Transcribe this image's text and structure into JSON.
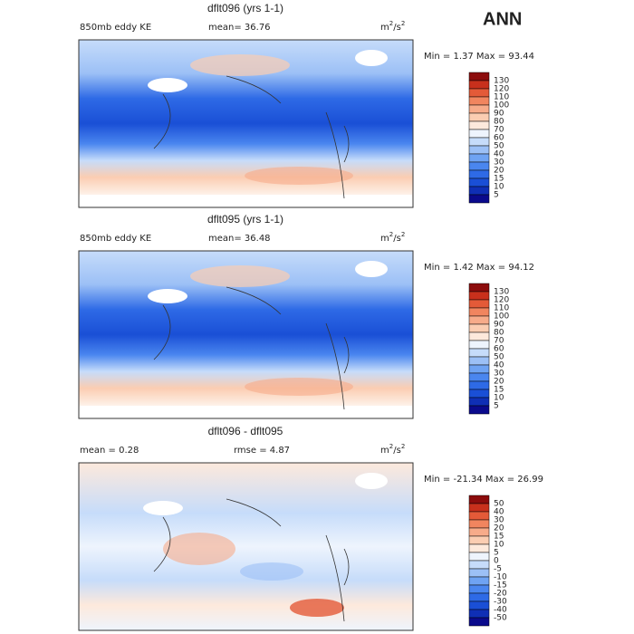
{
  "header": {
    "title": "ANN"
  },
  "palette": [
    "#0a0a8c",
    "#0f2fb5",
    "#1a4fd6",
    "#2e6ae6",
    "#4a86ef",
    "#6fa3f3",
    "#9cc0f6",
    "#c6dcfa",
    "#eef4fd",
    "#fde9dc",
    "#fbcdb2",
    "#f7ab8a",
    "#f1855f",
    "#e45a38",
    "#c8301c",
    "#8c0c0c"
  ],
  "panels": [
    {
      "title": "dflt096 (yrs 1-1)",
      "left_label": "850mb eddy KE",
      "center_label": "mean=  36.76",
      "units": [
        "m",
        "2",
        "/s",
        "2"
      ],
      "stats": "Min =    1.37 Max =   93.44",
      "colorbar": [
        "130",
        "120",
        "110",
        "100",
        "90",
        "80",
        "70",
        "60",
        "50",
        "40",
        "30",
        "20",
        "15",
        "10",
        "5"
      ]
    },
    {
      "title": "dflt095 (yrs 1-1)",
      "left_label": "850mb eddy KE",
      "center_label": "mean=  36.48",
      "units": [
        "m",
        "2",
        "/s",
        "2"
      ],
      "stats": "Min =    1.42 Max =   94.12",
      "colorbar": [
        "130",
        "120",
        "110",
        "100",
        "90",
        "80",
        "70",
        "60",
        "50",
        "40",
        "30",
        "20",
        "15",
        "10",
        "5"
      ]
    },
    {
      "title": "dflt096 - dflt095",
      "left_label": "mean =    0.28",
      "center_label": "rmse =    4.87",
      "units": [
        "m",
        "2",
        "/s",
        "2"
      ],
      "stats": "Min = -21.34 Max =   26.99",
      "colorbar": [
        "50",
        "40",
        "30",
        "20",
        "15",
        "10",
        "5",
        "0",
        "-5",
        "-10",
        "-15",
        "-20",
        "-30",
        "-40",
        "-50"
      ]
    }
  ]
}
